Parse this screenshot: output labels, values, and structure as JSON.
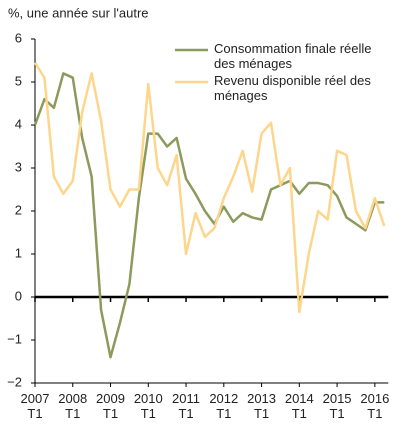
{
  "chart_data": {
    "type": "line",
    "y_label": "%, une année sur l'autre",
    "categories": [
      "2007\nT1",
      null,
      null,
      null,
      "2008\nT1",
      null,
      null,
      null,
      "2009\nT1",
      null,
      null,
      null,
      "2010\nT1",
      null,
      null,
      null,
      "2011\nT1",
      null,
      null,
      null,
      "2012\nT1",
      null,
      null,
      null,
      "2013\nT1",
      null,
      null,
      null,
      "2014\nT1",
      null,
      null,
      null,
      "2015\nT1",
      null,
      null,
      null,
      "2016\nT1",
      null
    ],
    "series": [
      {
        "name": "Consommation finale réelle\ndes ménages",
        "color": "#8c9a5b",
        "values": [
          4.0,
          4.6,
          4.4,
          5.2,
          5.1,
          3.7,
          2.8,
          -0.3,
          -1.4,
          -0.6,
          0.3,
          2.3,
          3.8,
          3.8,
          3.5,
          3.7,
          2.75,
          2.4,
          2.0,
          1.7,
          2.1,
          1.75,
          1.95,
          1.85,
          1.8,
          2.5,
          2.6,
          2.7,
          2.4,
          2.65,
          2.65,
          2.6,
          2.35,
          1.85,
          1.7,
          1.55,
          2.2,
          2.2
        ]
      },
      {
        "name": "Revenu disponible réel des\nménages",
        "color": "#fdd68c",
        "values": [
          5.45,
          5.1,
          2.8,
          2.4,
          2.7,
          4.3,
          5.2,
          4.1,
          2.5,
          2.1,
          2.5,
          2.5,
          4.95,
          3.0,
          2.6,
          3.3,
          1.0,
          1.95,
          1.4,
          1.6,
          2.3,
          2.8,
          3.4,
          2.45,
          3.8,
          4.05,
          2.6,
          3.0,
          -0.35,
          1.0,
          2.0,
          1.8,
          3.4,
          3.3,
          2.0,
          1.6,
          2.3,
          1.65
        ]
      }
    ],
    "ylim": [
      -2,
      6
    ],
    "yticks": [
      {
        "value": -2,
        "label": "−2"
      },
      {
        "value": -1,
        "label": "−1"
      },
      0,
      1,
      2,
      3,
      4,
      5,
      6
    ],
    "grid": false
  }
}
